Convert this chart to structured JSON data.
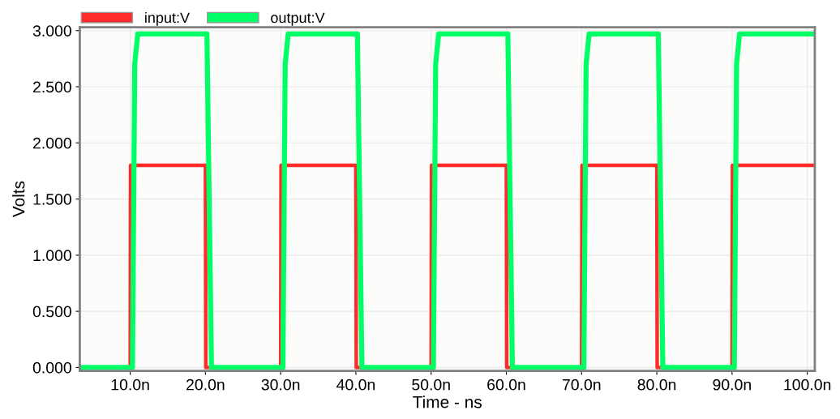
{
  "chart_data": {
    "type": "line",
    "xlabel": "Time - ns",
    "ylabel": "Volts",
    "xlim": [
      3.3,
      101
    ],
    "ylim": [
      -0.03,
      3.03
    ],
    "xticks": [
      {
        "value": 10,
        "label": "10.0n"
      },
      {
        "value": 20,
        "label": "20.0n"
      },
      {
        "value": 30,
        "label": "30.0n"
      },
      {
        "value": 40,
        "label": "40.0n"
      },
      {
        "value": 50,
        "label": "50.0n"
      },
      {
        "value": 60,
        "label": "60.0n"
      },
      {
        "value": 70,
        "label": "70.0n"
      },
      {
        "value": 80,
        "label": "80.0n"
      },
      {
        "value": 90,
        "label": "90.0n"
      },
      {
        "value": 100,
        "label": "100.0n"
      }
    ],
    "yticks": [
      {
        "value": 0,
        "label": "0.000"
      },
      {
        "value": 0.5,
        "label": "0.500"
      },
      {
        "value": 1,
        "label": "1.000"
      },
      {
        "value": 1.5,
        "label": "1.500"
      },
      {
        "value": 2,
        "label": "2.000"
      },
      {
        "value": 2.5,
        "label": "2.500"
      },
      {
        "value": 3,
        "label": "3.000"
      }
    ],
    "grid": true,
    "legend": "top left",
    "series": [
      {
        "name": "input:V",
        "color": "#ff2a2a",
        "x": [
          3.3,
          10,
          10.05,
          20,
          20.05,
          30,
          30.05,
          40,
          40.05,
          50,
          50.05,
          60,
          60.05,
          70,
          70.05,
          80,
          80.05,
          90,
          90.05,
          101
        ],
        "values": [
          0,
          0,
          1.8,
          1.8,
          0,
          0,
          1.8,
          1.8,
          0,
          0,
          1.8,
          1.8,
          0,
          0,
          1.8,
          1.8,
          0,
          0,
          1.8,
          1.8
        ]
      },
      {
        "name": "output:V",
        "color": "#00ff66",
        "x": [
          3.3,
          10.3,
          10.6,
          11,
          20.2,
          20.8,
          30.3,
          30.6,
          31,
          40.2,
          40.8,
          50.3,
          50.6,
          51,
          60.2,
          60.8,
          70.3,
          70.6,
          71,
          80.2,
          80.8,
          90.3,
          90.6,
          91,
          101
        ],
        "values": [
          0,
          0,
          2.7,
          2.97,
          2.97,
          0,
          0,
          2.7,
          2.97,
          2.97,
          0,
          0,
          2.7,
          2.97,
          2.97,
          0,
          0,
          2.7,
          2.97,
          2.97,
          0,
          0,
          2.7,
          2.97,
          2.97
        ]
      }
    ]
  }
}
